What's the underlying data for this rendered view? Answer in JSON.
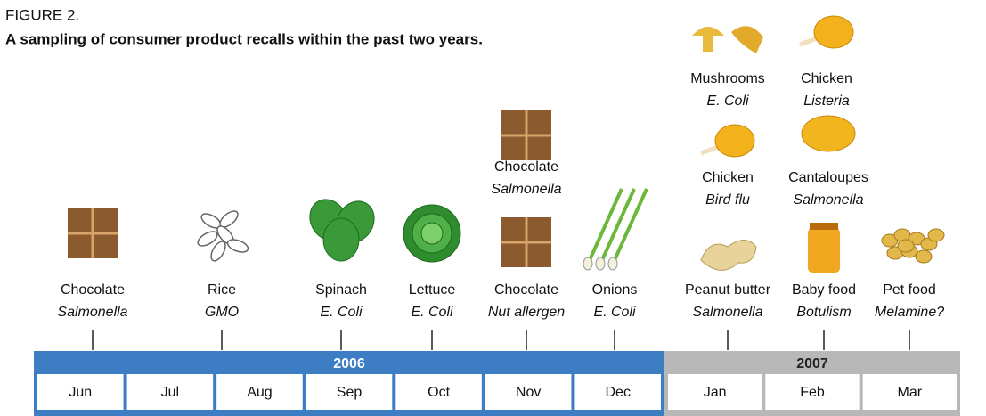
{
  "header": {
    "figure_label": "FIGURE 2.",
    "title": "A sampling of consumer product recalls within the past two years."
  },
  "recalls": [
    {
      "product": "Chocolate",
      "cause": "Salmonella"
    },
    {
      "product": "Rice",
      "cause": "GMO"
    },
    {
      "product": "Spinach",
      "cause": "E. Coli"
    },
    {
      "product": "Lettuce",
      "cause": "E. Coli"
    },
    {
      "product": "Chocolate",
      "cause": "Nut allergen"
    },
    {
      "product": "Onions",
      "cause": "E. Coli"
    },
    {
      "product": "Peanut butter",
      "cause": "Salmonella"
    },
    {
      "product": "Baby food",
      "cause": "Botulism"
    },
    {
      "product": "Pet food",
      "cause": "Melamine?"
    },
    {
      "product": "Chocolate",
      "cause": "Salmonella"
    },
    {
      "product": "Chicken",
      "cause": "Bird flu"
    },
    {
      "product": "Cantaloupes",
      "cause": "Salmonella"
    },
    {
      "product": "Mushrooms",
      "cause": "E. Coli"
    },
    {
      "product": "Chicken",
      "cause": "Listeria"
    }
  ],
  "timeline": {
    "years": [
      {
        "label": "2006",
        "months": [
          "Jun",
          "Jul",
          "Aug",
          "Sep",
          "Oct",
          "Nov",
          "Dec"
        ]
      },
      {
        "label": "2007",
        "months": [
          "Jan",
          "Feb",
          "Mar"
        ]
      }
    ]
  }
}
